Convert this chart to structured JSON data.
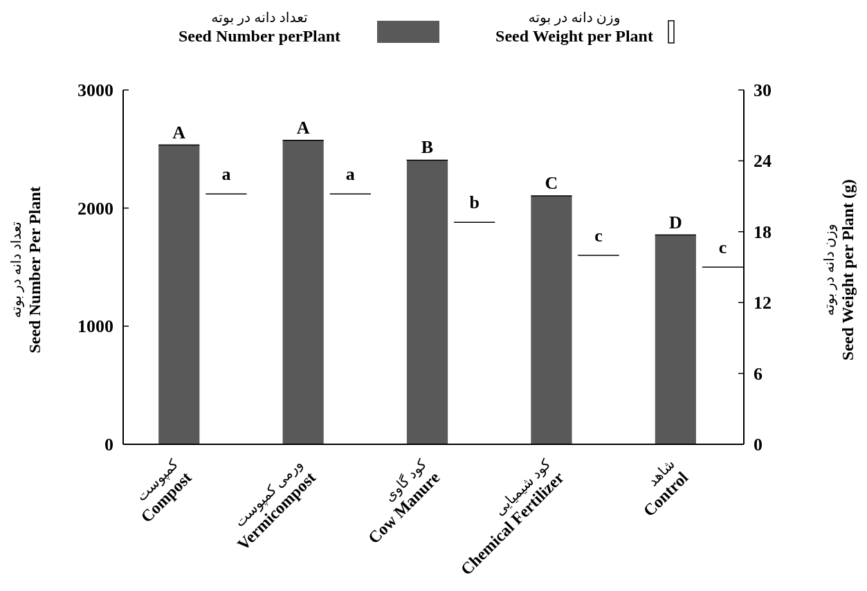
{
  "chart_data": {
    "type": "bar",
    "categories": [
      "کمپوست\n**Compost**",
      "ورمی کمپوست\n**Vermicompost**",
      "کود گاوی\n**Cow Manure**",
      "کود شیمیایی\n**Chemical Fertilizer**",
      "شاهد\n**Control**"
    ],
    "series": [
      {
        "name": "تعداد دانه در بوته\n**Seed Number perPlant**",
        "color": "#595959",
        "values": [
          2534,
          2573,
          2406,
          2103,
          1772
        ]
      },
      {
        "name": "وزن دانه در بوته\n**Seed Weight per Plant**",
        "color": "#ffffff",
        "axis": "y2",
        "values": [
          21.2,
          21.2,
          18.8,
          16,
          15
        ]
      }
    ],
    "ylabel": "تعداد دانه در بوته\n**Seed Number Per Plant**",
    "y2label": "وزن دانه در بوته\n**Seed Weight per Plant (g)**",
    "ylim": [
      0,
      3000
    ],
    "yticks": [
      0,
      1000,
      2000,
      3000
    ],
    "y2lim": [
      0,
      30
    ],
    "y2ticks": [
      0,
      6,
      12,
      18,
      24,
      30
    ],
    "legend": "top",
    "grid": false,
    "annotations": [
      {
        "text": "A",
        "x": "کمپوست\n**Compost**",
        "y": 2534
      },
      {
        "text": "A",
        "x": "ورمی کمپوست\n**Vermicompost**",
        "y": 2573
      },
      {
        "text": "B",
        "x": "کود گاوی\n**Cow Manure**",
        "y": 2406
      },
      {
        "text": "C",
        "x": "کود شیمیایی\n**Chemical Fertilizer**",
        "y": 2103
      },
      {
        "text": "D",
        "x": "شاهد\n**Control**",
        "y": 1772
      },
      "a",
      "a",
      "b",
      "c",
      "c"
    ]
  }
}
